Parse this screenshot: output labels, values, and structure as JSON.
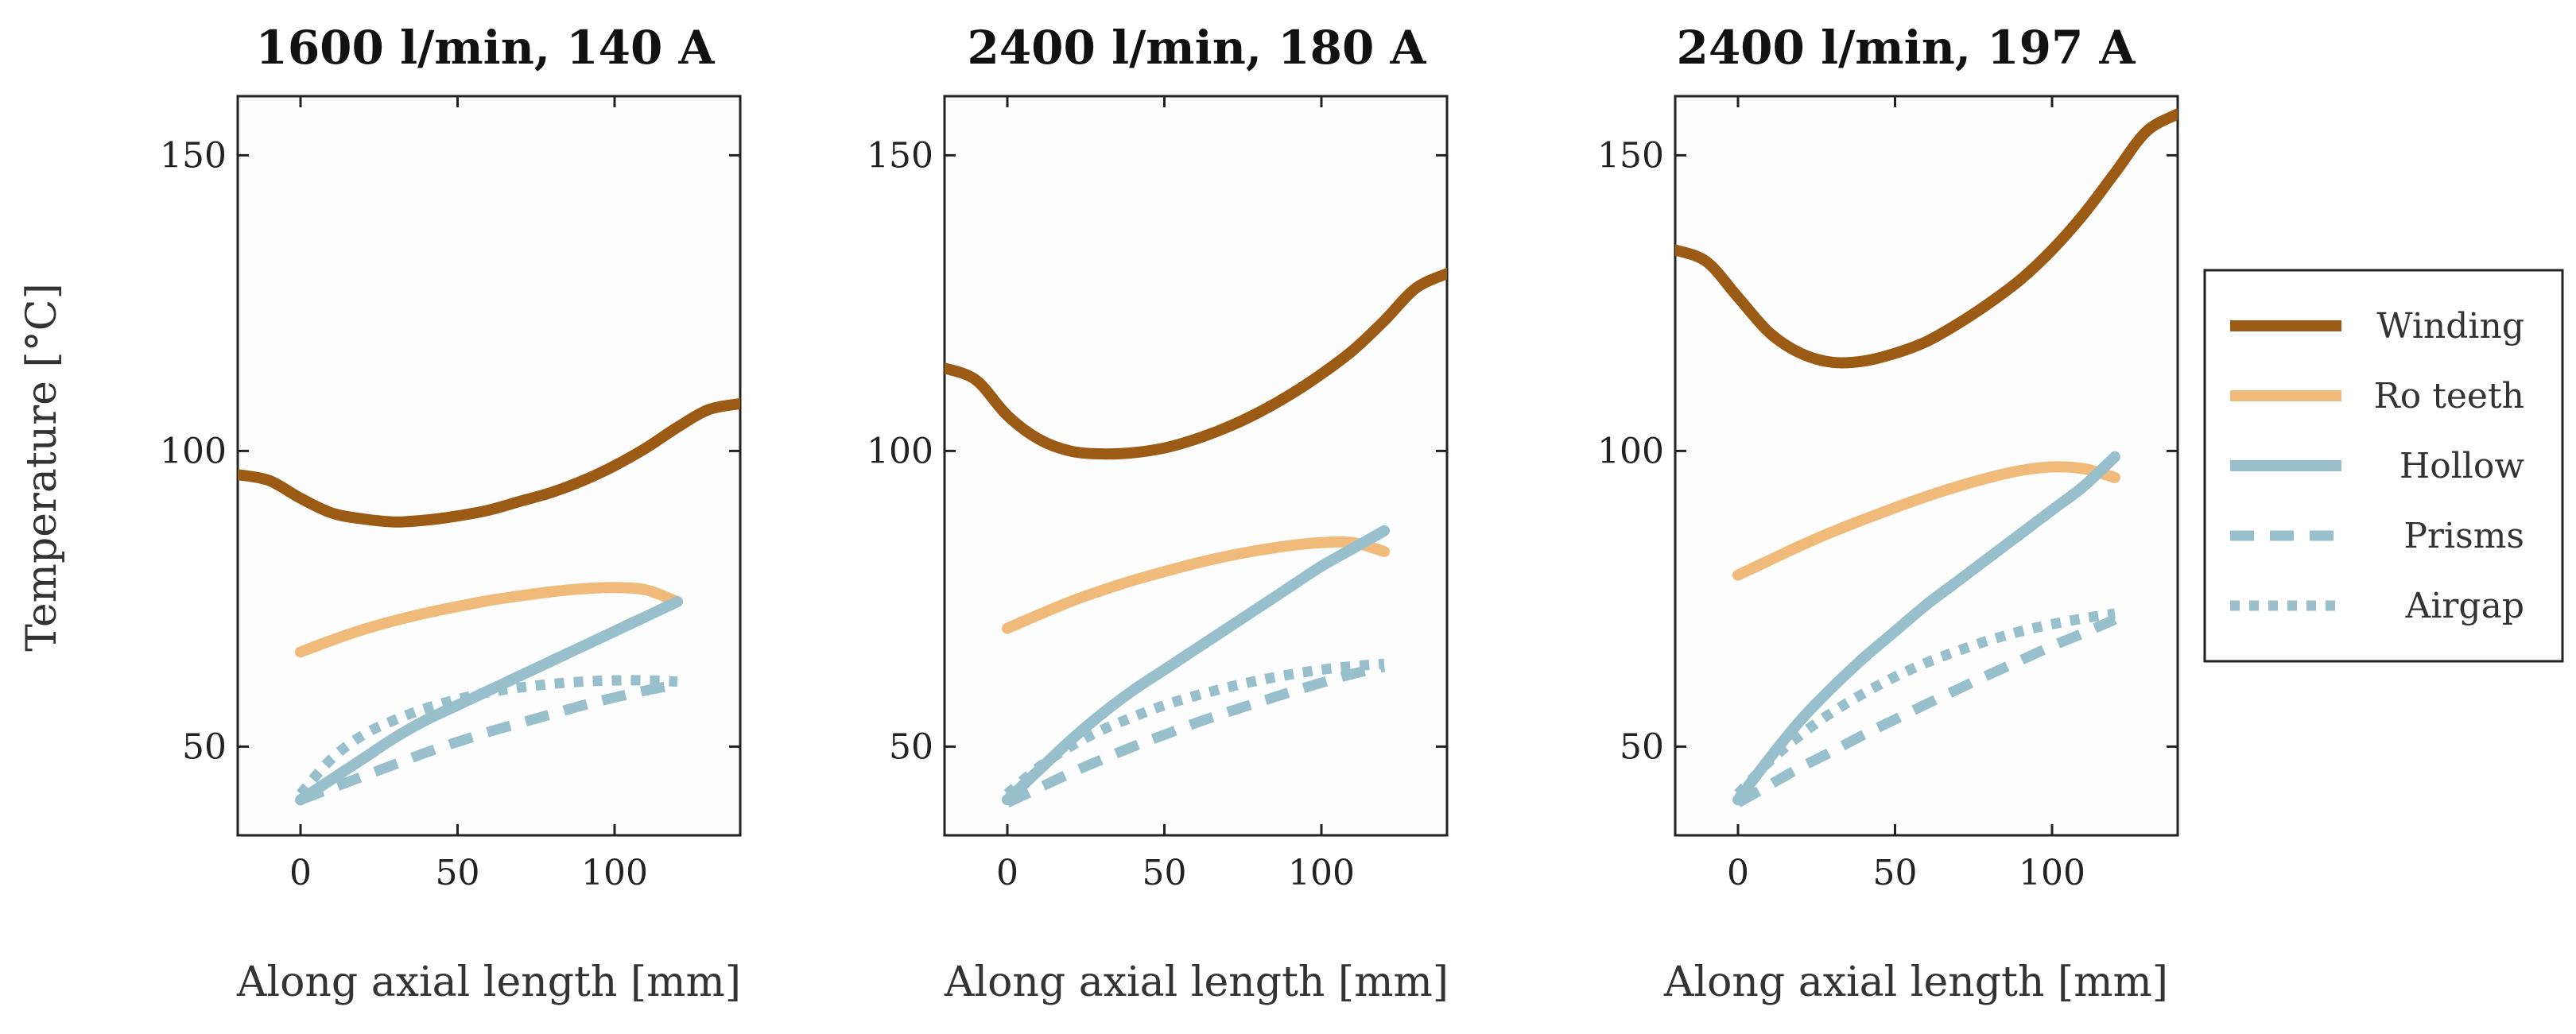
{
  "chart_data": [
    {
      "type": "line",
      "title": "1600 l/min, 140 A",
      "xlabel": "Along axial length [mm]",
      "ylabel": "Temperature [°C]",
      "xlim": [
        -20,
        140
      ],
      "ylim": [
        35,
        160
      ],
      "xticks": [
        0,
        50,
        100
      ],
      "yticks": [
        50,
        100,
        150
      ],
      "series": [
        {
          "name": "Winding",
          "x": [
            -20,
            -10,
            0,
            10,
            20,
            30,
            40,
            50,
            60,
            70,
            80,
            90,
            100,
            110,
            120,
            130,
            140
          ],
          "y": [
            96,
            95,
            92,
            89.5,
            88.5,
            88,
            88.3,
            89,
            90,
            91.5,
            93,
            95,
            97.5,
            100.5,
            104,
            107,
            108
          ]
        },
        {
          "name": "Ro teeth",
          "x": [
            0,
            10,
            20,
            30,
            40,
            50,
            60,
            70,
            80,
            90,
            100,
            110,
            120
          ],
          "y": [
            66,
            68,
            69.8,
            71.3,
            72.6,
            73.7,
            74.7,
            75.5,
            76.2,
            76.7,
            76.9,
            76.5,
            74.5
          ]
        },
        {
          "name": "Hollow",
          "x": [
            0,
            10,
            20,
            30,
            40,
            50,
            60,
            70,
            80,
            90,
            100,
            110,
            120
          ],
          "y": [
            41,
            44.5,
            48,
            51.5,
            54.5,
            57,
            59.5,
            62,
            64.5,
            67,
            69.5,
            72,
            74.5
          ]
        },
        {
          "name": "Prisms",
          "x": [
            0,
            10,
            20,
            30,
            40,
            50,
            60,
            70,
            80,
            90,
            100,
            110,
            120
          ],
          "y": [
            41,
            43,
            45,
            47,
            49,
            50.8,
            52.5,
            54,
            55.5,
            57,
            58.3,
            59.5,
            60.5
          ]
        },
        {
          "name": "Airgap",
          "x": [
            0,
            10,
            20,
            30,
            40,
            50,
            60,
            70,
            80,
            90,
            100,
            110,
            120
          ],
          "y": [
            42,
            48,
            52,
            54.5,
            56.5,
            58,
            59.2,
            60,
            60.6,
            61,
            61.2,
            61.2,
            61
          ]
        }
      ]
    },
    {
      "type": "line",
      "title": "2400 l/min, 180 A",
      "xlabel": "Along axial length [mm]",
      "ylabel": "",
      "xlim": [
        -20,
        140
      ],
      "ylim": [
        35,
        160
      ],
      "xticks": [
        0,
        50,
        100
      ],
      "yticks": [
        50,
        100,
        150
      ],
      "series": [
        {
          "name": "Winding",
          "x": [
            -20,
            -10,
            0,
            10,
            20,
            30,
            40,
            50,
            60,
            70,
            80,
            90,
            100,
            110,
            120,
            130,
            140
          ],
          "y": [
            114,
            112,
            106,
            102,
            100,
            99.5,
            99.7,
            100.5,
            102,
            104,
            106.5,
            109.5,
            113,
            117,
            122,
            127.5,
            130
          ]
        },
        {
          "name": "Ro teeth",
          "x": [
            0,
            10,
            20,
            30,
            40,
            50,
            60,
            70,
            80,
            90,
            100,
            110,
            120
          ],
          "y": [
            70,
            72.3,
            74.5,
            76.4,
            78.1,
            79.6,
            81,
            82.2,
            83.2,
            84,
            84.5,
            84.5,
            83
          ]
        },
        {
          "name": "Hollow",
          "x": [
            0,
            10,
            20,
            30,
            40,
            50,
            60,
            70,
            80,
            90,
            100,
            110,
            120
          ],
          "y": [
            41,
            46,
            51,
            55.5,
            59.5,
            63,
            66.5,
            70,
            73.5,
            77,
            80.5,
            83.5,
            86.5
          ]
        },
        {
          "name": "Prisms",
          "x": [
            0,
            10,
            20,
            30,
            40,
            50,
            60,
            70,
            80,
            90,
            100,
            110,
            120
          ],
          "y": [
            40.5,
            43,
            45.5,
            47.8,
            50,
            52,
            54,
            55.8,
            57.5,
            59.2,
            60.8,
            62.3,
            63.5
          ]
        },
        {
          "name": "Airgap",
          "x": [
            0,
            10,
            20,
            30,
            40,
            50,
            60,
            70,
            80,
            90,
            100,
            110,
            120
          ],
          "y": [
            42,
            46.5,
            50,
            52.8,
            55,
            57,
            58.6,
            60,
            61.2,
            62.2,
            63,
            63.6,
            64
          ]
        }
      ]
    },
    {
      "type": "line",
      "title": "2400 l/min, 197 A",
      "xlabel": "Along axial length [mm]",
      "ylabel": "",
      "xlim": [
        -20,
        140
      ],
      "ylim": [
        35,
        160
      ],
      "xticks": [
        0,
        50,
        100
      ],
      "yticks": [
        50,
        100,
        150
      ],
      "series": [
        {
          "name": "Winding",
          "x": [
            -20,
            -10,
            0,
            10,
            20,
            30,
            40,
            50,
            60,
            70,
            80,
            90,
            100,
            110,
            120,
            130,
            140
          ],
          "y": [
            134,
            132,
            126,
            120,
            116.5,
            115,
            115.2,
            116.5,
            118.5,
            121.5,
            125,
            129,
            134,
            140,
            147,
            154,
            157
          ]
        },
        {
          "name": "Ro teeth",
          "x": [
            0,
            10,
            20,
            30,
            40,
            50,
            60,
            70,
            80,
            90,
            100,
            110,
            120
          ],
          "y": [
            79,
            81.5,
            84,
            86.3,
            88.4,
            90.4,
            92.3,
            94,
            95.5,
            96.7,
            97.3,
            97,
            95.5
          ]
        },
        {
          "name": "Hollow",
          "x": [
            0,
            10,
            20,
            30,
            40,
            50,
            60,
            70,
            80,
            90,
            100,
            110,
            120
          ],
          "y": [
            41,
            48,
            54.5,
            60,
            65,
            69.5,
            74,
            78,
            82,
            86,
            90,
            94,
            99
          ]
        },
        {
          "name": "Prisms",
          "x": [
            0,
            10,
            20,
            30,
            40,
            50,
            60,
            70,
            80,
            90,
            100,
            110,
            120
          ],
          "y": [
            40.5,
            43.5,
            46.5,
            49.2,
            52,
            54.6,
            57.2,
            59.7,
            62.2,
            64.6,
            67,
            69.2,
            71.5
          ]
        },
        {
          "name": "Airgap",
          "x": [
            0,
            10,
            20,
            30,
            40,
            50,
            60,
            70,
            80,
            90,
            100,
            110,
            120
          ],
          "y": [
            42,
            47.5,
            52,
            55.8,
            59,
            61.8,
            64.2,
            66.2,
            68,
            69.5,
            70.7,
            71.7,
            72.5
          ]
        }
      ]
    }
  ],
  "legend": {
    "placement": "right",
    "entries": [
      {
        "name": "Winding",
        "color": "#9c5b14",
        "style": "solid"
      },
      {
        "name": "Ro teeth",
        "color": "#f0bb7a",
        "style": "solid"
      },
      {
        "name": "Hollow",
        "color": "#97bfcc",
        "style": "solid"
      },
      {
        "name": "Prisms",
        "color": "#97bfcc",
        "style": "dashed"
      },
      {
        "name": "Airgap",
        "color": "#97bfcc",
        "style": "dotted"
      }
    ]
  }
}
